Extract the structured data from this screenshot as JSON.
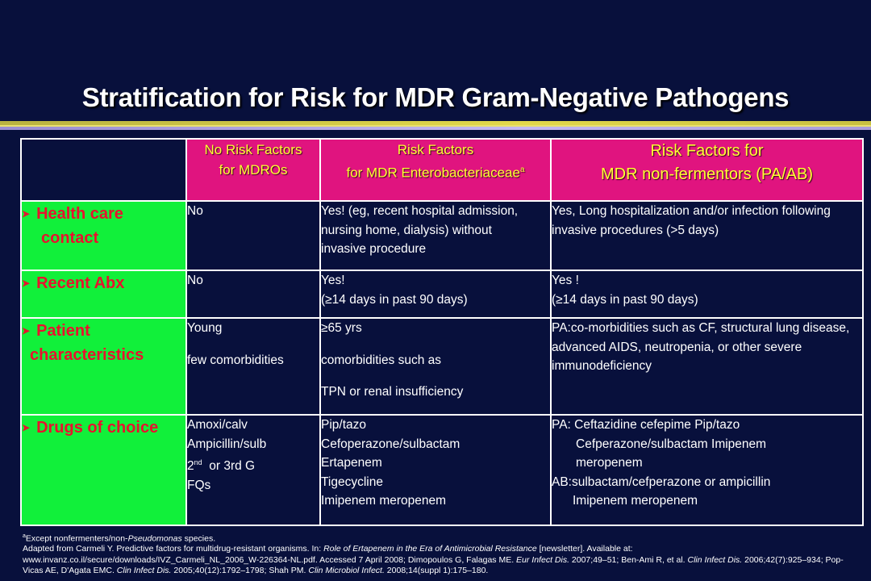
{
  "title": "Stratification for Risk for MDR Gram-Negative Pathogens",
  "headers": {
    "col1": [
      "No Risk Factors",
      "for MDROs"
    ],
    "col2": [
      "Risk Factors",
      "for MDR Enterobacteriaceae",
      "a"
    ],
    "col3": [
      "Risk Factors for",
      "MDR non-fermentors (PA/AB)"
    ]
  },
  "rows": {
    "health_care": {
      "label": [
        "Health care",
        "contact"
      ],
      "col1": [
        "No"
      ],
      "col2": [
        "Yes! (eg, recent hospital admission,",
        "nursing home, dialysis) without",
        "invasive procedure"
      ],
      "col3": [
        "Yes, Long hospitalization and/or infection following",
        "invasive procedures (>5 days)"
      ]
    },
    "recent_abx": {
      "label": [
        "Recent Abx"
      ],
      "col1": [
        "No"
      ],
      "col2": [
        "Yes!",
        "(≥14 days in past 90 days)"
      ],
      "col3": [
        "Yes !",
        "(≥14 days in past 90 days)"
      ]
    },
    "patient": {
      "label": [
        "Patient",
        "characteristics"
      ],
      "col1": [
        "Young",
        "few comorbidities"
      ],
      "col2": [
        " ≥65 yrs",
        "comorbidities such as",
        "TPN or renal insufficiency"
      ],
      "col3": [
        "PA:co-morbidities such as CF, structural lung disease,",
        "advanced AIDS, neutropenia, or other severe",
        "immunodeficiency"
      ]
    },
    "drugs": {
      "label": [
        "Drugs of choice"
      ],
      "col1": [
        "Amoxi/calv",
        "Ampicillin/sulb",
        "2",
        "nd",
        "  or 3rd G",
        "FQs"
      ],
      "col2": [
        "Pip/tazo",
        "Cefoperazone/sulbactam",
        "Ertapenem",
        "Tigecycline",
        "Imipenem meropenem"
      ],
      "col3": [
        "PA: Ceftazidine cefepime Pip/tazo",
        "Cefperazone/sulbactam Imipenem",
        "meropenem",
        "AB:sulbactam/cefperazone or ampicillin",
        "Imipenem meropenem"
      ]
    }
  },
  "footnote": {
    "sup": "a",
    "text1": "Except nonfermenters/non-",
    "italic1": "Pseudomonas",
    "text2": " species."
  },
  "reference": [
    "Adapted from Carmeli Y. Predictive factors for multidrug-resistant organisms. In: ",
    "Role of Ertapenem in the Era of Antimicrobial Resistance",
    " [newsletter]. Available at: www.invanz.co.il/secure/downloads/IVZ_Carmeli_NL_2006_W-226364-NL.pdf. Accessed 7 April 2008; Dimopoulos G, Falagas ME. ",
    "Eur Infect Dis.",
    " 2007;49–51; Ben-Ami R, et al. ",
    "Clin Infect Dis.",
    " 2006;42(7):925–934;  Pop-Vicas AE, D'Agata EMC. ",
    "Clin Infect Dis.",
    " 2005;40(12):1792–1798; Shah PM. ",
    "Clin Microbiol Infect.",
    " 2008;14(suppl 1):175–180."
  ],
  "colors": {
    "background": "#08103c",
    "header_magenta": "#e0147f",
    "header_text": "#ffff33",
    "row_header_green": "#11f03a",
    "row_header_text": "#e8122e"
  },
  "icons": {
    "bullet": "arrowhead-bullet-icon"
  }
}
